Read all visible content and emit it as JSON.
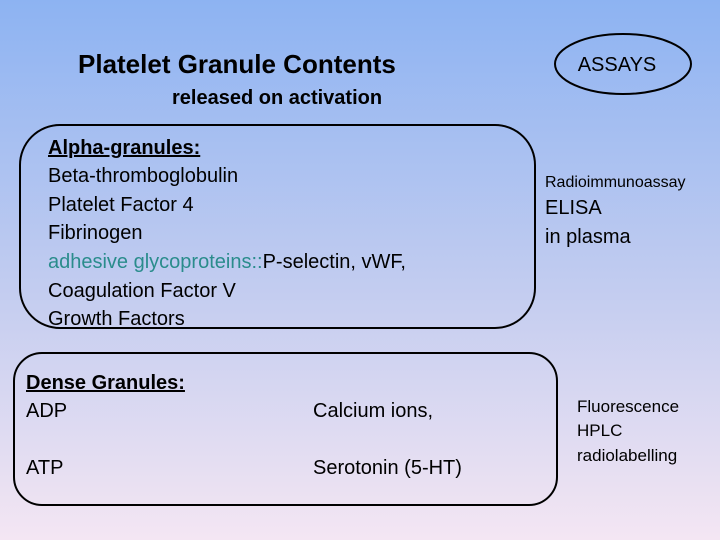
{
  "slide": {
    "title": "Platelet Granule Contents",
    "subtitle": "released on activation",
    "assays_label": "ASSAYS",
    "alpha_granules": {
      "heading": "Alpha-granules:",
      "items": [
        "Beta-thromboglobulin",
        "Platelet Factor 4",
        "Fibrinogen"
      ],
      "adhesive": {
        "label": "adhesive glycoproteins::",
        "detail": "P-selectin, vWF,"
      },
      "more_items": [
        "Coagulation Factor V",
        "Growth Factors"
      ]
    },
    "alpha_assays": {
      "small": "Radioimmunoassay",
      "lines": [
        "ELISA",
        "in plasma"
      ]
    },
    "dense_granules": {
      "heading": "Dense Granules:",
      "rows": [
        [
          "ADP",
          "Calcium ions,"
        ],
        [
          "ATP",
          "Serotonin (5-HT)"
        ]
      ]
    },
    "dense_assays": [
      "Fluorescence",
      "HPLC",
      "radiolabelling"
    ]
  }
}
